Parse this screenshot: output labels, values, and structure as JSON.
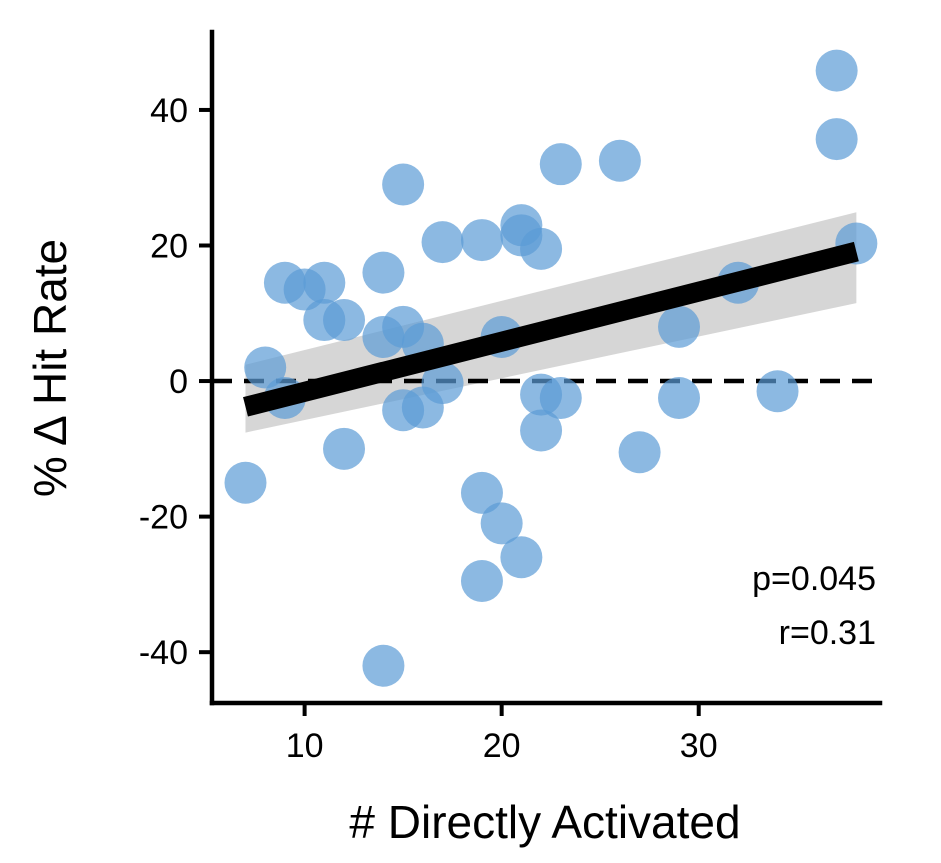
{
  "chart_data": {
    "type": "scatter",
    "xlabel": "# Directly Activated",
    "ylabel": "% Δ Hit Rate",
    "xlim": [
      5.3,
      39.2
    ],
    "ylim": [
      -47.5,
      51.5
    ],
    "xticks": [
      10,
      20,
      30
    ],
    "yticks": [
      -40,
      -20,
      0,
      20,
      40
    ],
    "x_tick_labels": [
      "10",
      "20",
      "30"
    ],
    "y_tick_labels": [
      "-40",
      "-20",
      "0",
      "20",
      "40"
    ],
    "grid": false,
    "reference_line": {
      "y": 0,
      "style": "dashed"
    },
    "fit_line": {
      "x": [
        7,
        38
      ],
      "y": [
        -3.8,
        19.1
      ],
      "ci_lower_ends": [
        -7.6,
        11.5
      ],
      "ci_upper_ends": [
        2.4,
        24.9
      ]
    },
    "annotations": [
      "p=0.045",
      "r=0.31"
    ],
    "point_color": "#5b9bd5",
    "fit_color": "#000000",
    "band_color": "#c8c8c8",
    "points": [
      {
        "x": 7,
        "y": -15
      },
      {
        "x": 8,
        "y": 2
      },
      {
        "x": 9,
        "y": 14.5
      },
      {
        "x": 9,
        "y": -2.5
      },
      {
        "x": 10,
        "y": 13.5
      },
      {
        "x": 11,
        "y": 14.5
      },
      {
        "x": 11,
        "y": 9
      },
      {
        "x": 12,
        "y": 9
      },
      {
        "x": 12,
        "y": -10
      },
      {
        "x": 14,
        "y": 16
      },
      {
        "x": 14,
        "y": 6.5
      },
      {
        "x": 14,
        "y": -42
      },
      {
        "x": 15,
        "y": 29
      },
      {
        "x": 15,
        "y": 8
      },
      {
        "x": 15,
        "y": -4.3
      },
      {
        "x": 16,
        "y": 5.5
      },
      {
        "x": 16,
        "y": -3.9
      },
      {
        "x": 17,
        "y": 20.5
      },
      {
        "x": 17,
        "y": -0.3
      },
      {
        "x": 19,
        "y": 20.8
      },
      {
        "x": 19,
        "y": -16.5
      },
      {
        "x": 19,
        "y": -29.5
      },
      {
        "x": 20,
        "y": 6.5
      },
      {
        "x": 20,
        "y": -21
      },
      {
        "x": 21,
        "y": 23
      },
      {
        "x": 21,
        "y": 21.5
      },
      {
        "x": 21,
        "y": -26
      },
      {
        "x": 22,
        "y": 19.5
      },
      {
        "x": 22,
        "y": -2
      },
      {
        "x": 22,
        "y": -7.3
      },
      {
        "x": 23,
        "y": 32
      },
      {
        "x": 23,
        "y": -2.5
      },
      {
        "x": 26,
        "y": 32.5
      },
      {
        "x": 27,
        "y": -10.5
      },
      {
        "x": 29,
        "y": 8
      },
      {
        "x": 29,
        "y": -2.5
      },
      {
        "x": 32,
        "y": 14.5
      },
      {
        "x": 34,
        "y": -1.5
      },
      {
        "x": 37,
        "y": 45.8
      },
      {
        "x": 37,
        "y": 35.7
      },
      {
        "x": 38,
        "y": 20.3
      }
    ]
  }
}
